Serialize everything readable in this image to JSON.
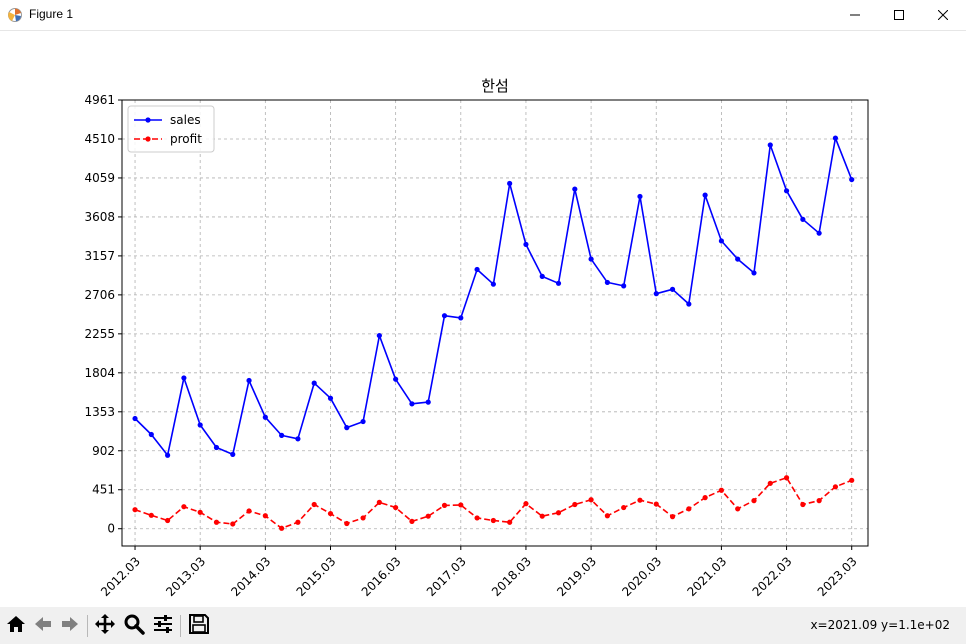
{
  "window": {
    "title": "Figure 1",
    "icon": "matplotlib-icon",
    "controls": [
      "minimize-icon",
      "maximize-icon",
      "close-icon"
    ]
  },
  "toolbar": {
    "buttons": [
      {
        "name": "home-button",
        "icon": "home-icon"
      },
      {
        "name": "back-button",
        "icon": "arrow-left-icon"
      },
      {
        "name": "forward-button",
        "icon": "arrow-right-icon"
      },
      {
        "name": "pan-button",
        "icon": "move-icon"
      },
      {
        "name": "zoom-button",
        "icon": "magnifier-icon"
      },
      {
        "name": "configure-subplots-button",
        "icon": "sliders-icon"
      },
      {
        "name": "save-button",
        "icon": "floppy-disk-icon"
      }
    ],
    "coordinate_readout": "x=2021.09 y=1.1e+02"
  },
  "chart_data": {
    "type": "line",
    "title": "한섬",
    "xlabel": "",
    "ylabel": "",
    "grid": true,
    "legend_position": "upper-left",
    "ylim": [
      -200,
      4961
    ],
    "yticks": [
      0,
      451,
      902,
      1353,
      1804,
      2255,
      2706,
      3157,
      3608,
      4059,
      4510,
      4961
    ],
    "xlim": [
      2011.8,
      2023.25
    ],
    "xticks": [
      {
        "value": 2012,
        "label": "2012.03"
      },
      {
        "value": 2013,
        "label": "2013.03"
      },
      {
        "value": 2014,
        "label": "2014.03"
      },
      {
        "value": 2015,
        "label": "2015.03"
      },
      {
        "value": 2016,
        "label": "2016.03"
      },
      {
        "value": 2017,
        "label": "2017.03"
      },
      {
        "value": 2018,
        "label": "2018.03"
      },
      {
        "value": 2019,
        "label": "2019.03"
      },
      {
        "value": 2020,
        "label": "2020.03"
      },
      {
        "value": 2021,
        "label": "2021.03"
      },
      {
        "value": 2022,
        "label": "2022.03"
      },
      {
        "value": 2023,
        "label": "2023.03"
      }
    ],
    "x": [
      2012.0,
      2012.25,
      2012.5,
      2012.75,
      2013.0,
      2013.25,
      2013.5,
      2013.75,
      2014.0,
      2014.25,
      2014.5,
      2014.75,
      2015.0,
      2015.25,
      2015.5,
      2015.75,
      2016.0,
      2016.25,
      2016.5,
      2016.75,
      2017.0,
      2017.25,
      2017.5,
      2017.75,
      2018.0,
      2018.25,
      2018.5,
      2018.75,
      2019.0,
      2019.25,
      2019.5,
      2019.75,
      2020.0,
      2020.25,
      2020.5,
      2020.75,
      2021.0,
      2021.25,
      2021.5,
      2021.75,
      2022.0,
      2022.25,
      2022.5,
      2022.75,
      2023.0
    ],
    "series": [
      {
        "name": "sales",
        "color": "#0000ff",
        "linestyle": "solid",
        "marker": "dot",
        "values": [
          1275,
          1090,
          850,
          1745,
          1200,
          940,
          860,
          1715,
          1290,
          1080,
          1040,
          1685,
          1510,
          1170,
          1240,
          2235,
          1730,
          1445,
          1465,
          2465,
          2440,
          3000,
          2830,
          3995,
          3290,
          2920,
          2840,
          3930,
          3120,
          2850,
          2810,
          3845,
          2720,
          2770,
          2600,
          3860,
          3330,
          3120,
          2960,
          4440,
          3910,
          3580,
          3420,
          4520,
          4040
        ]
      },
      {
        "name": "profit",
        "color": "#ff0000",
        "linestyle": "dashed",
        "marker": "dot",
        "values": [
          220,
          155,
          95,
          255,
          190,
          75,
          55,
          205,
          150,
          5,
          75,
          280,
          175,
          60,
          125,
          305,
          245,
          85,
          145,
          270,
          275,
          125,
          95,
          75,
          290,
          145,
          185,
          280,
          335,
          150,
          245,
          330,
          285,
          140,
          230,
          360,
          445,
          230,
          325,
          525,
          590,
          280,
          325,
          485,
          560
        ]
      }
    ]
  }
}
